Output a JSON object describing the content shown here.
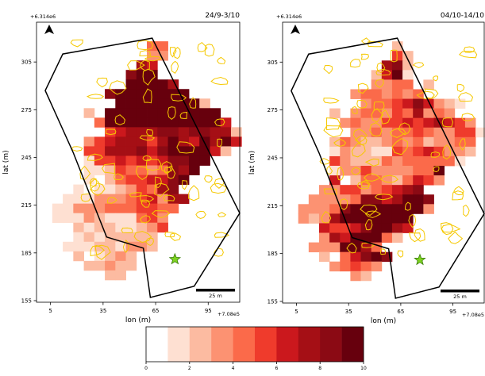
{
  "figure": {
    "colorbar": {
      "ticks": [
        "0",
        "2",
        "4",
        "6",
        "8",
        "10"
      ],
      "colors": [
        "#ffffff",
        "#fee0d2",
        "#fcbba1",
        "#fc9272",
        "#fb6a4a",
        "#ef3b2c",
        "#cb181d",
        "#a50f15",
        "#8b0a14",
        "#67000d"
      ]
    },
    "north_arrow_icon": "north-arrow-icon",
    "marker_icon": "green-star-icon",
    "outline_color": "#000000",
    "contour_color": "#f5c800"
  },
  "chart_data": [
    {
      "type": "heatmap",
      "title": "24/9-3/10",
      "xlabel": "lon (m)",
      "ylabel": "lat (m)",
      "x_offset_label": "+7.08e5",
      "y_offset_label": "+6.314e6",
      "xticks": [
        "5",
        "35",
        "65",
        "95"
      ],
      "yticks": [
        "155",
        "185",
        "215",
        "245",
        "275",
        "305"
      ],
      "xlim": [
        -3,
        113
      ],
      "ylim": [
        154,
        330
      ],
      "scalebar_label": "25 m",
      "cell_size": 6,
      "x0": 0,
      "y0": 156,
      "grid": [
        "....................",
        "....................",
        "..........44........",
        "..........33........",
        ".........76.........",
        "........899.........",
        "........99997.......",
        "......89999999......",
        ".......999999992....",
        "....2.99999999999...",
        ".....4999999999996..",
        "......5677788788772.",
        "....356777579769796.",
        "....55777868999962..",
        "....155656568899....",
        "....11254434879.....",
        "....1.24556689......",
        "...1011235478.......",
        "..111333456377......",
        ".113334445544.......",
        ".11132111453........",
        "...212211235........",
        "...12122222.........",
        "..111221332.........",
        "...2.1232...........",
        "....22322...........",
        "......22............",
        "....................",
        "...................."
      ],
      "outline": [
        [
          2,
          287
        ],
        [
          12,
          310
        ],
        [
          63,
          320
        ],
        [
          113,
          210
        ],
        [
          87,
          164
        ],
        [
          62,
          157
        ],
        [
          58,
          188
        ],
        [
          37,
          195
        ],
        [
          18,
          248
        ]
      ],
      "marker": [
        76,
        181
      ]
    },
    {
      "type": "heatmap",
      "title": "04/10-14/10",
      "xlabel": "lon (m)",
      "ylabel": "lat (m)",
      "x_offset_label": "+7.08e5",
      "y_offset_label": "+6.314e6",
      "xticks": [
        "5",
        "35",
        "65",
        "95"
      ],
      "yticks": [
        "155",
        "185",
        "215",
        "245",
        "275",
        "305"
      ],
      "xlim": [
        -3,
        113
      ],
      "ylim": [
        154,
        330
      ],
      "scalebar_label": "25 m",
      "cell_size": 6,
      "x0": 0,
      "y0": 156,
      "grid": [
        "....................",
        "....................",
        "..........2.........",
        "..........52........",
        ".........782........",
        "........2691........",
        "........3344.2......",
        "......3443434.......",
        ".......3445686321...",
        "....2.3443547343....",
        ".....3433556567653..",
        "......3343445433551.",
        "....24322343423344..",
        "....13221154565332..",
        "....5322243444441...",
        "....13353333449.....",
        "....6.244324653.....",
        "...3355345678.......",
        "..333348867998......",
        ".3334899999993......",
        ".32379999999........",
        "...655689976........",
        "...37699942.........",
        "..3339974...........",
        "...2.46898..........",
        "....34543...........",
        "......32............",
        "....................",
        "...................."
      ],
      "outline": [
        [
          2,
          287
        ],
        [
          12,
          310
        ],
        [
          63,
          320
        ],
        [
          113,
          210
        ],
        [
          87,
          164
        ],
        [
          62,
          157
        ],
        [
          58,
          188
        ],
        [
          37,
          195
        ],
        [
          18,
          248
        ]
      ],
      "marker": [
        76,
        181
      ]
    }
  ]
}
